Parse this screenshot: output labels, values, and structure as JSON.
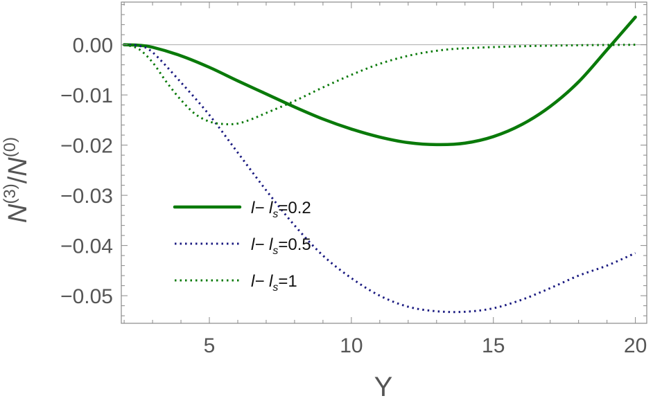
{
  "chart_data": {
    "type": "line",
    "xlabel": "Y",
    "ylabel": {
      "base": "N",
      "num_sup": "(3)",
      "slash": "/",
      "den_base": "N",
      "den_sup": "(0)"
    },
    "xlim": [
      1.9,
      20.4
    ],
    "ylim": [
      -0.0555,
      0.0085
    ],
    "x_ticks": [
      {
        "value": 5,
        "label": "5"
      },
      {
        "value": 10,
        "label": "10"
      },
      {
        "value": 15,
        "label": "15"
      },
      {
        "value": 20,
        "label": "20"
      }
    ],
    "y_ticks": [
      {
        "value": 0.0,
        "label": "0.00"
      },
      {
        "value": -0.01,
        "label": "−0.01"
      },
      {
        "value": -0.02,
        "label": "−0.02"
      },
      {
        "value": -0.03,
        "label": "−0.03"
      },
      {
        "value": -0.04,
        "label": "−0.04"
      },
      {
        "value": -0.05,
        "label": "−0.05"
      }
    ],
    "zero_line": true,
    "grid": false,
    "legend_position": "lower-left",
    "series": [
      {
        "legend": {
          "prefix": "l− l",
          "sub": "s",
          "suffix": "=0.2"
        },
        "color": "#0a7a0a",
        "style": "solid",
        "x": [
          2,
          2.5,
          3,
          4,
          5,
          6,
          7,
          8,
          9,
          10,
          11,
          12,
          13,
          14,
          15,
          16,
          17,
          18,
          19,
          20
        ],
        "y": [
          0.0,
          -0.0001,
          -0.0005,
          -0.0022,
          -0.0045,
          -0.0072,
          -0.0098,
          -0.0124,
          -0.0148,
          -0.0168,
          -0.0184,
          -0.0195,
          -0.0199,
          -0.0196,
          -0.0183,
          -0.0159,
          -0.0123,
          -0.0074,
          -0.001,
          0.0055
        ]
      },
      {
        "legend": {
          "prefix": "l− l",
          "sub": "s",
          "suffix": "=0.5"
        },
        "color": "#1a1a80",
        "style": "dotted",
        "x": [
          2,
          2.5,
          3,
          4,
          5,
          6,
          7,
          8,
          9,
          10,
          11,
          12,
          13,
          14,
          15,
          16,
          17,
          18,
          19,
          20
        ],
        "y": [
          0.0,
          -0.0002,
          -0.0015,
          -0.0075,
          -0.014,
          -0.0215,
          -0.029,
          -0.036,
          -0.042,
          -0.0465,
          -0.05,
          -0.0522,
          -0.0531,
          -0.0532,
          -0.0525,
          -0.0508,
          -0.0485,
          -0.046,
          -0.044,
          -0.0415
        ]
      },
      {
        "legend": {
          "prefix": "l− l",
          "sub": "s",
          "suffix": "=1"
        },
        "color": "#0a7a0a",
        "style": "dotted",
        "x": [
          2,
          2.5,
          3,
          3.5,
          4,
          4.5,
          5,
          5.5,
          6,
          6.5,
          7,
          8,
          9,
          10,
          11,
          12,
          13,
          14,
          16,
          18,
          20
        ],
        "y": [
          0.0,
          -0.0008,
          -0.0035,
          -0.0075,
          -0.011,
          -0.0138,
          -0.0153,
          -0.0158,
          -0.0157,
          -0.0148,
          -0.0136,
          -0.0112,
          -0.0085,
          -0.006,
          -0.0038,
          -0.0022,
          -0.0012,
          -0.0007,
          -0.0003,
          -0.0001,
          0.0
        ]
      }
    ]
  }
}
